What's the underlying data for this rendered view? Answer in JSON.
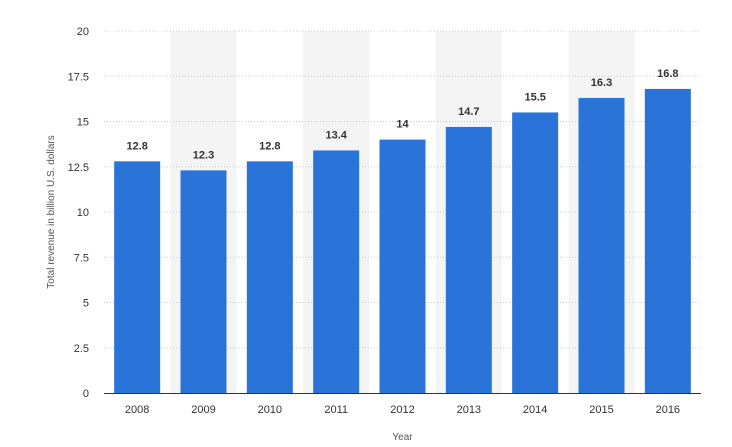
{
  "chart_data": {
    "type": "bar",
    "title": "",
    "xlabel": "Year",
    "ylabel": "Total revenue in billion U.S. dollars",
    "categories": [
      "2008",
      "2009",
      "2010",
      "2011",
      "2012",
      "2013",
      "2014",
      "2015",
      "2016"
    ],
    "values": [
      12.8,
      12.3,
      12.8,
      13.4,
      14,
      14.7,
      15.5,
      16.3,
      16.8
    ],
    "value_labels": [
      "12.8",
      "12.3",
      "12.8",
      "13.4",
      "14",
      "14.7",
      "15.5",
      "16.3",
      "16.8"
    ],
    "ylim": [
      0,
      20
    ],
    "yticks": [
      0,
      2.5,
      5,
      7.5,
      10,
      12.5,
      15,
      17.5,
      20
    ],
    "ytick_labels": [
      "0",
      "2.5",
      "5",
      "7.5",
      "10",
      "12.5",
      "15",
      "17.5",
      "20"
    ],
    "grid": true,
    "legend": "none",
    "colors": {
      "bar": "#2a74d9",
      "grid": "#c8c8c8",
      "band": "#f4f4f4",
      "axis": "#333333"
    }
  }
}
